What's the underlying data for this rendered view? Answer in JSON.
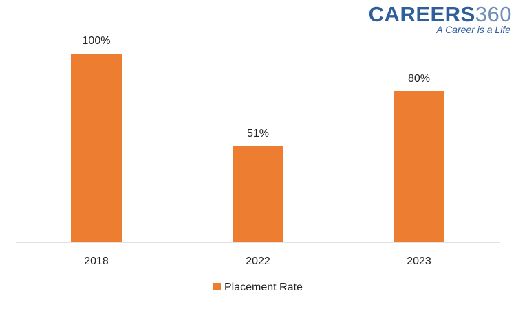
{
  "brand": {
    "word": "CAREERS",
    "number": "360",
    "tagline": "A Career is a Life",
    "color_dark": "#2e5f9a",
    "color_light": "#6f8fb8"
  },
  "chart_data": {
    "type": "bar",
    "categories": [
      "2018",
      "2022",
      "2023"
    ],
    "series": [
      {
        "name": "Placement Rate",
        "values": [
          100,
          51,
          80
        ],
        "labels": [
          "100%",
          "51%",
          "80%"
        ],
        "color": "#ed7d31"
      }
    ],
    "ylim": [
      0,
      100
    ],
    "grid": false,
    "legend_position": "bottom",
    "axis_color": "#d9d9d9",
    "text_color": "#222222"
  }
}
